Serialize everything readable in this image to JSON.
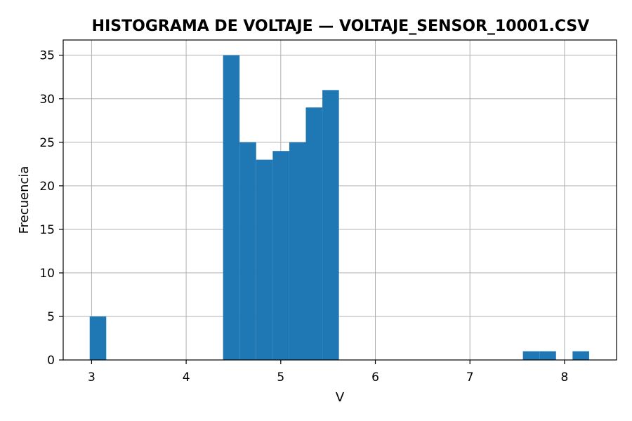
{
  "chart_data": {
    "type": "bar",
    "title": "HISTOGRAMA DE VOLTAJE — VOLTAJE_SENSOR_10001.CSV",
    "xlabel": "V",
    "ylabel": "Frecuencia",
    "xlim": [
      2.7,
      8.55
    ],
    "ylim": [
      0,
      36.75
    ],
    "xticks": [
      3,
      4,
      5,
      6,
      7,
      8
    ],
    "yticks": [
      0,
      5,
      10,
      15,
      20,
      25,
      30,
      35
    ],
    "grid": true,
    "bar_color": "#1f77b4",
    "bins": [
      {
        "x0": 2.98,
        "x1": 3.155,
        "count": 5
      },
      {
        "x0": 4.39,
        "x1": 4.565,
        "count": 35
      },
      {
        "x0": 4.565,
        "x1": 4.74,
        "count": 25
      },
      {
        "x0": 4.74,
        "x1": 4.915,
        "count": 23
      },
      {
        "x0": 4.915,
        "x1": 5.09,
        "count": 24
      },
      {
        "x0": 5.09,
        "x1": 5.265,
        "count": 25
      },
      {
        "x0": 5.265,
        "x1": 5.44,
        "count": 29
      },
      {
        "x0": 5.44,
        "x1": 5.615,
        "count": 31
      },
      {
        "x0": 7.56,
        "x1": 7.735,
        "count": 1
      },
      {
        "x0": 7.735,
        "x1": 7.91,
        "count": 1
      },
      {
        "x0": 8.085,
        "x1": 8.26,
        "count": 1
      }
    ]
  }
}
